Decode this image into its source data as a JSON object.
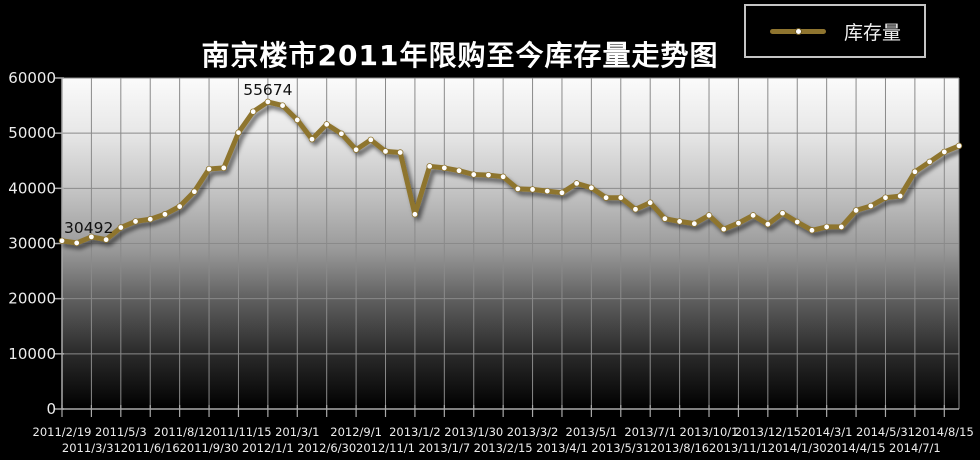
{
  "title": "南京楼市2011年限购至今库存量走势图",
  "legend": {
    "label": "库存量",
    "position": "top-right"
  },
  "colors": {
    "page_background": "#000000",
    "title_text": "#ffffff",
    "legend_border": "#c4c4c4",
    "line": "#8e742f",
    "marker_fill": "#ffffff",
    "grid": "#8a8a8a",
    "axis": "#aaaaaa",
    "tick_text": "#ededed",
    "annotation_text": "#111111",
    "plot_gradient": [
      "#fbfbfb",
      "#e8e8e8",
      "#c4c4c4",
      "#999999",
      "#5f5f5f",
      "#2e2e2e",
      "#000000"
    ]
  },
  "chart_data": {
    "type": "line",
    "title": "南京楼市2011年限购至今库存量走势图",
    "xlabel": "",
    "ylabel": "",
    "ylim": [
      0,
      60000
    ],
    "y_ticks": [
      0,
      10000,
      20000,
      30000,
      40000,
      50000,
      60000
    ],
    "grid": true,
    "legend_position": "top-right",
    "x_tick_labels": [
      "2011/2/19",
      "2011/3/31",
      "2011/5/3",
      "2011/6/16",
      "2011/8/1",
      "2011/9/30",
      "2011/11/15",
      "2012/1/1",
      "201/3/1",
      "2012/6/30",
      "2012/9/1",
      "2012/11/1",
      "2013/1/2",
      "2013/1/7",
      "2013/1/30",
      "2013/2/15",
      "2013/3/2",
      "2013/4/1",
      "2013/5/1",
      "2013/5/31",
      "2013/7/1",
      "2013/8/16",
      "2013/10/1",
      "2013/11/1",
      "2013/12/15",
      "2014/1/30",
      "2014/3/1",
      "2014/4/15",
      "2014/5/31",
      "2014/7/1",
      "2014/8/15"
    ],
    "label_every_n_points": 2,
    "series": [
      {
        "name": "库存量",
        "values": [
          30492,
          30100,
          31200,
          30700,
          32900,
          34000,
          34400,
          35300,
          36700,
          39400,
          43500,
          43700,
          50100,
          53900,
          55674,
          55000,
          52400,
          48900,
          51600,
          49900,
          47000,
          48800,
          46700,
          46500,
          35300,
          44000,
          43700,
          43200,
          42500,
          42400,
          42100,
          39900,
          39800,
          39500,
          39200,
          40900,
          40100,
          38300,
          38300,
          36200,
          37400,
          34500,
          34000,
          33600,
          35100,
          32600,
          33700,
          35100,
          33500,
          35500,
          33900,
          32400,
          33000,
          33000,
          36000,
          36800,
          38300,
          38600,
          43000,
          44800,
          46600,
          47700
        ]
      }
    ],
    "annotations": [
      {
        "point_index": 0,
        "text": "30492",
        "align": "left"
      },
      {
        "point_index": 14,
        "text": "55674",
        "align": "center"
      }
    ]
  }
}
